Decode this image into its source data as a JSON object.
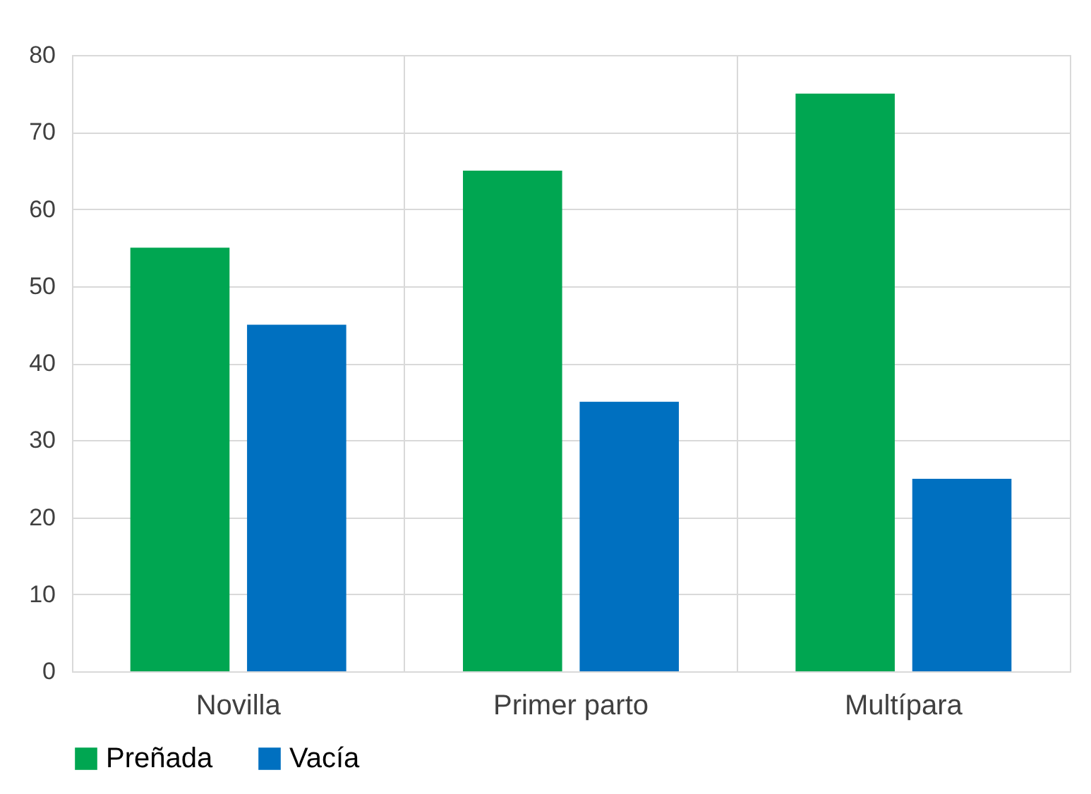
{
  "chart_data": {
    "type": "bar",
    "categories": [
      "Novilla",
      "Primer parto",
      "Multípara"
    ],
    "series": [
      {
        "name": "Preñada",
        "color": "#00a651",
        "values": [
          55,
          65,
          75
        ]
      },
      {
        "name": "Vacía",
        "color": "#0070c0",
        "values": [
          45,
          35,
          25
        ]
      }
    ],
    "ylim": [
      0,
      80
    ],
    "yticks": [
      0,
      10,
      20,
      30,
      40,
      50,
      60,
      70,
      80
    ],
    "grid": true,
    "legend": "bottom"
  }
}
